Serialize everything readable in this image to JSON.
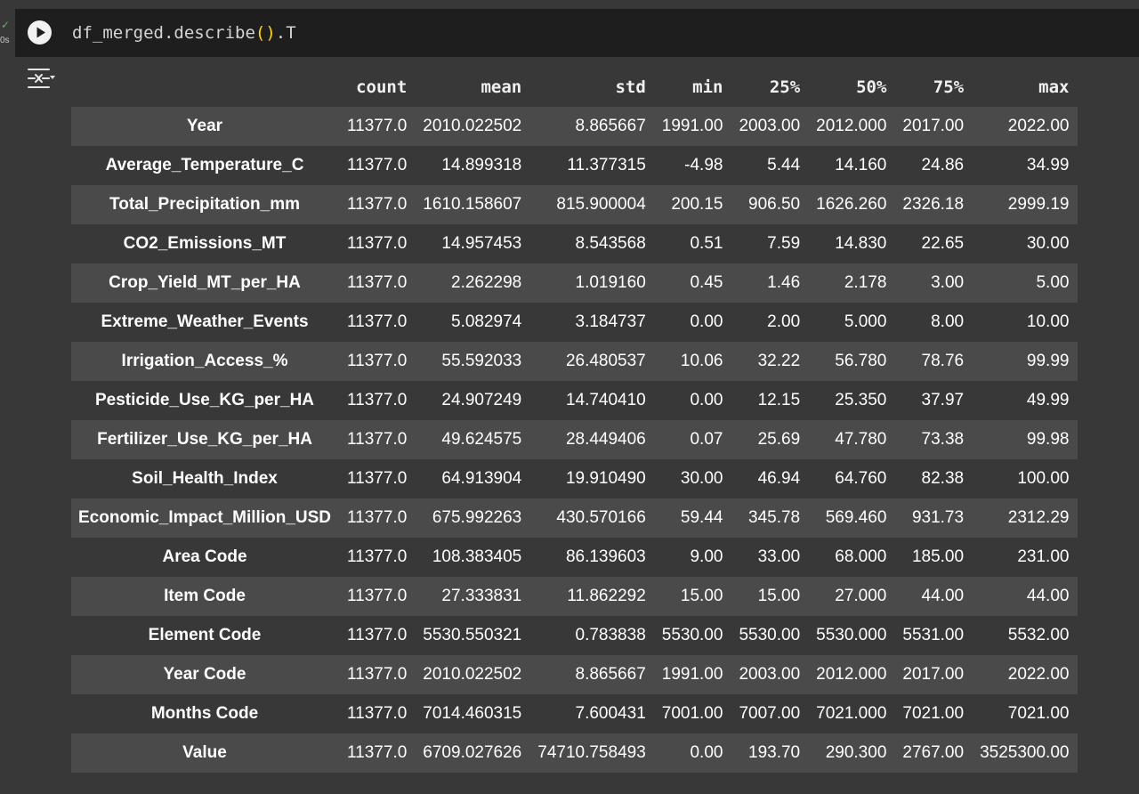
{
  "cell": {
    "status_check": "✓",
    "exec_time": "0s",
    "code_prefix": "df_merged.describe",
    "code_paren": "()",
    "code_suffix": ".T"
  },
  "table": {
    "columns": [
      "",
      "count",
      "mean",
      "std",
      "min",
      "25%",
      "50%",
      "75%",
      "max"
    ],
    "rows": [
      {
        "label": "Year",
        "cells": [
          "11377.0",
          "2010.022502",
          "8.865667",
          "1991.00",
          "2003.00",
          "2012.000",
          "2017.00",
          "2022.00"
        ]
      },
      {
        "label": "Average_Temperature_C",
        "cells": [
          "11377.0",
          "14.899318",
          "11.377315",
          "-4.98",
          "5.44",
          "14.160",
          "24.86",
          "34.99"
        ]
      },
      {
        "label": "Total_Precipitation_mm",
        "cells": [
          "11377.0",
          "1610.158607",
          "815.900004",
          "200.15",
          "906.50",
          "1626.260",
          "2326.18",
          "2999.19"
        ]
      },
      {
        "label": "CO2_Emissions_MT",
        "cells": [
          "11377.0",
          "14.957453",
          "8.543568",
          "0.51",
          "7.59",
          "14.830",
          "22.65",
          "30.00"
        ]
      },
      {
        "label": "Crop_Yield_MT_per_HA",
        "cells": [
          "11377.0",
          "2.262298",
          "1.019160",
          "0.45",
          "1.46",
          "2.178",
          "3.00",
          "5.00"
        ]
      },
      {
        "label": "Extreme_Weather_Events",
        "cells": [
          "11377.0",
          "5.082974",
          "3.184737",
          "0.00",
          "2.00",
          "5.000",
          "8.00",
          "10.00"
        ]
      },
      {
        "label": "Irrigation_Access_%",
        "cells": [
          "11377.0",
          "55.592033",
          "26.480537",
          "10.06",
          "32.22",
          "56.780",
          "78.76",
          "99.99"
        ]
      },
      {
        "label": "Pesticide_Use_KG_per_HA",
        "cells": [
          "11377.0",
          "24.907249",
          "14.740410",
          "0.00",
          "12.15",
          "25.350",
          "37.97",
          "49.99"
        ]
      },
      {
        "label": "Fertilizer_Use_KG_per_HA",
        "cells": [
          "11377.0",
          "49.624575",
          "28.449406",
          "0.07",
          "25.69",
          "47.780",
          "73.38",
          "99.98"
        ]
      },
      {
        "label": "Soil_Health_Index",
        "cells": [
          "11377.0",
          "64.913904",
          "19.910490",
          "30.00",
          "46.94",
          "64.760",
          "82.38",
          "100.00"
        ]
      },
      {
        "label": "Economic_Impact_Million_USD",
        "cells": [
          "11377.0",
          "675.992263",
          "430.570166",
          "59.44",
          "345.78",
          "569.460",
          "931.73",
          "2312.29"
        ]
      },
      {
        "label": "Area Code",
        "cells": [
          "11377.0",
          "108.383405",
          "86.139603",
          "9.00",
          "33.00",
          "68.000",
          "185.00",
          "231.00"
        ]
      },
      {
        "label": "Item Code",
        "cells": [
          "11377.0",
          "27.333831",
          "11.862292",
          "15.00",
          "15.00",
          "27.000",
          "44.00",
          "44.00"
        ]
      },
      {
        "label": "Element Code",
        "cells": [
          "11377.0",
          "5530.550321",
          "0.783838",
          "5530.00",
          "5530.00",
          "5530.000",
          "5531.00",
          "5532.00"
        ]
      },
      {
        "label": "Year Code",
        "cells": [
          "11377.0",
          "2010.022502",
          "8.865667",
          "1991.00",
          "2003.00",
          "2012.000",
          "2017.00",
          "2022.00"
        ]
      },
      {
        "label": "Months Code",
        "cells": [
          "11377.0",
          "7014.460315",
          "7.600431",
          "7001.00",
          "7007.00",
          "7021.000",
          "7021.00",
          "7021.00"
        ]
      },
      {
        "label": "Value",
        "cells": [
          "11377.0",
          "6709.027626",
          "74710.758493",
          "0.00",
          "193.70",
          "290.300",
          "2767.00",
          "3525300.00"
        ]
      }
    ]
  }
}
